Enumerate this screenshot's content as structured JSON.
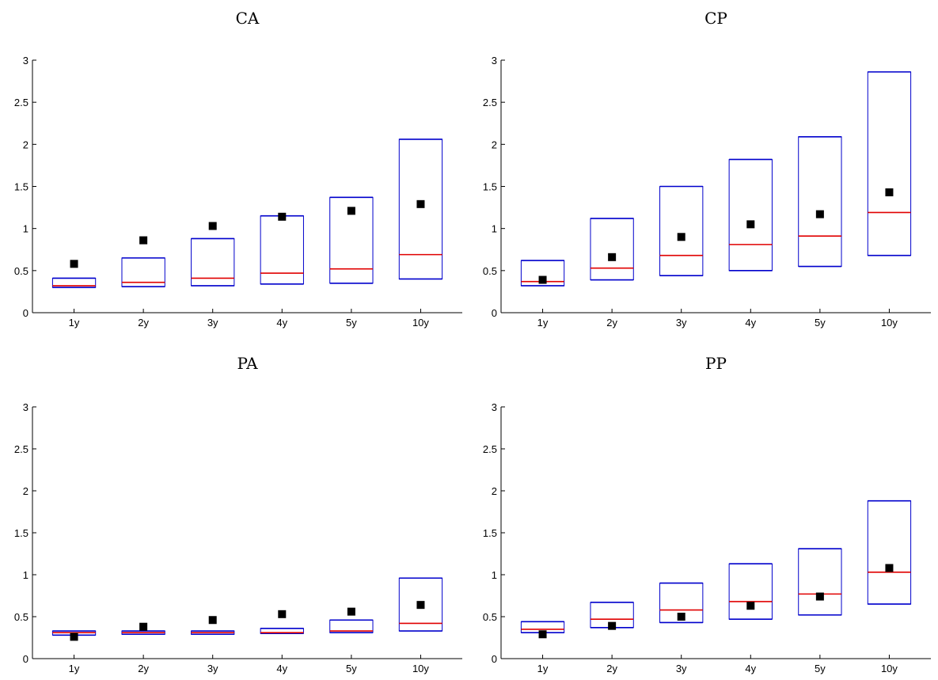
{
  "chart_data": [
    {
      "type": "box",
      "title": "CA",
      "categories": [
        "1y",
        "2y",
        "3y",
        "4y",
        "5y",
        "10y"
      ],
      "ylim": [
        0,
        3
      ],
      "yticks": [
        "0",
        "0.5",
        "1",
        "1.5",
        "2",
        "2.5",
        "3"
      ],
      "boxes": [
        {
          "low": 0.3,
          "high": 0.41,
          "median": 0.32
        },
        {
          "low": 0.31,
          "high": 0.65,
          "median": 0.36
        },
        {
          "low": 0.32,
          "high": 0.88,
          "median": 0.41
        },
        {
          "low": 0.34,
          "high": 1.15,
          "median": 0.47
        },
        {
          "low": 0.35,
          "high": 1.37,
          "median": 0.52
        },
        {
          "low": 0.4,
          "high": 2.06,
          "median": 0.69
        }
      ],
      "markers": [
        0.58,
        0.86,
        1.03,
        1.14,
        1.21,
        1.29
      ]
    },
    {
      "type": "box",
      "title": "CP",
      "categories": [
        "1y",
        "2y",
        "3y",
        "4y",
        "5y",
        "10y"
      ],
      "ylim": [
        0,
        3
      ],
      "yticks": [
        "0",
        "0.5",
        "1",
        "1.5",
        "2",
        "2.5",
        "3"
      ],
      "boxes": [
        {
          "low": 0.32,
          "high": 0.62,
          "median": 0.37
        },
        {
          "low": 0.39,
          "high": 1.12,
          "median": 0.53
        },
        {
          "low": 0.44,
          "high": 1.5,
          "median": 0.68
        },
        {
          "low": 0.5,
          "high": 1.82,
          "median": 0.81
        },
        {
          "low": 0.55,
          "high": 2.09,
          "median": 0.91
        },
        {
          "low": 0.68,
          "high": 2.86,
          "median": 1.19
        }
      ],
      "markers": [
        0.39,
        0.66,
        0.9,
        1.05,
        1.17,
        1.43
      ]
    },
    {
      "type": "box",
      "title": "PA",
      "categories": [
        "1y",
        "2y",
        "3y",
        "4y",
        "5y",
        "10y"
      ],
      "ylim": [
        0,
        3
      ],
      "yticks": [
        "0",
        "0.5",
        "1",
        "1.5",
        "2",
        "2.5",
        "3"
      ],
      "boxes": [
        {
          "low": 0.28,
          "high": 0.33,
          "median": 0.31
        },
        {
          "low": 0.29,
          "high": 0.33,
          "median": 0.31
        },
        {
          "low": 0.29,
          "high": 0.33,
          "median": 0.31
        },
        {
          "low": 0.3,
          "high": 0.36,
          "median": 0.31
        },
        {
          "low": 0.31,
          "high": 0.46,
          "median": 0.33
        },
        {
          "low": 0.33,
          "high": 0.96,
          "median": 0.42
        }
      ],
      "markers": [
        0.26,
        0.38,
        0.46,
        0.53,
        0.56,
        0.64
      ]
    },
    {
      "type": "box",
      "title": "PP",
      "categories": [
        "1y",
        "2y",
        "3y",
        "4y",
        "5y",
        "10y"
      ],
      "ylim": [
        0,
        3
      ],
      "yticks": [
        "0",
        "0.5",
        "1",
        "1.5",
        "2",
        "2.5",
        "3"
      ],
      "boxes": [
        {
          "low": 0.31,
          "high": 0.44,
          "median": 0.35
        },
        {
          "low": 0.37,
          "high": 0.67,
          "median": 0.47
        },
        {
          "low": 0.43,
          "high": 0.9,
          "median": 0.58
        },
        {
          "low": 0.47,
          "high": 1.13,
          "median": 0.68
        },
        {
          "low": 0.52,
          "high": 1.31,
          "median": 0.77
        },
        {
          "low": 0.65,
          "high": 1.88,
          "median": 1.03
        }
      ],
      "markers": [
        0.29,
        0.39,
        0.5,
        0.63,
        0.74,
        1.08
      ]
    }
  ],
  "colors": {
    "box": "#0000cc",
    "median": "#e00000",
    "marker": "#000000"
  }
}
